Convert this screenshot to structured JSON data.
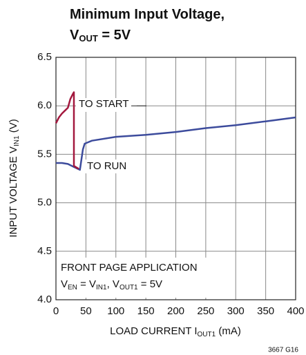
{
  "chart_data": {
    "type": "line",
    "title": [
      "Minimum Input Voltage,",
      "V",
      "OUT",
      " = 5V"
    ],
    "x_label": [
      "LOAD CURRENT I",
      "OUT1",
      " (mA)"
    ],
    "y_label": [
      "INPUT VOLTAGE V",
      "IN1",
      " (V)"
    ],
    "annotations": {
      "start": "TO START",
      "run": "TO RUN",
      "note_line1": "FRONT PAGE APPLICATION",
      "note_line2": [
        "V",
        "EN",
        " = V",
        "IN1",
        ", V",
        "OUT1",
        " = 5V"
      ]
    },
    "footnote": "3667 G16",
    "xlim": [
      0,
      400
    ],
    "xticks": [
      0,
      50,
      100,
      150,
      200,
      250,
      300,
      350,
      400
    ],
    "ylim": [
      4,
      6.5
    ],
    "yticks": [
      {
        "value": 4,
        "label": "4.0"
      },
      4.5,
      {
        "value": 5,
        "label": "5.0"
      },
      5.5,
      {
        "value": 6,
        "label": "6.0"
      },
      6.5
    ],
    "grid": true,
    "series": [
      {
        "color": "#3c4b9c",
        "x": [
          0,
          10,
          20,
          30,
          40,
          45,
          48,
          60,
          100,
          150,
          200,
          250,
          300,
          350,
          400
        ],
        "values": [
          5.41,
          5.41,
          5.4,
          5.37,
          5.34,
          5.55,
          5.61,
          5.64,
          5.68,
          5.7,
          5.73,
          5.77,
          5.8,
          5.84,
          5.88
        ]
      },
      {
        "color": "#a3183e",
        "x": [
          0,
          5,
          10,
          15,
          20,
          24,
          28,
          30,
          30,
          38
        ],
        "values": [
          5.82,
          5.88,
          5.92,
          5.95,
          5.98,
          6.07,
          6.12,
          6.14,
          5.38,
          5.35
        ]
      }
    ]
  }
}
